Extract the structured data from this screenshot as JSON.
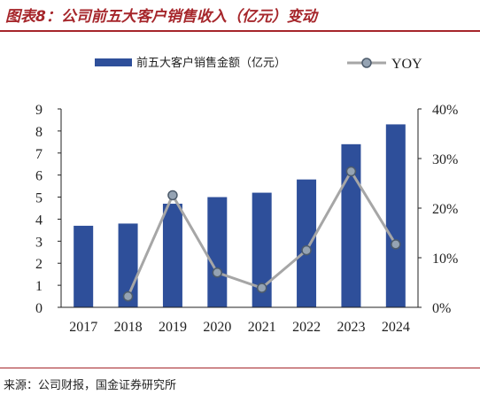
{
  "figure": {
    "title": "图表8：公司前五大客户销售收入（亿元）变动",
    "source": "来源：公司财报，国金证券研究所"
  },
  "colors": {
    "bar": "#2e4f9a",
    "line": "#a6a6a6",
    "marker_fill": "#95a3b3",
    "marker_stroke": "#4d5b6b",
    "accent": "#a6262b",
    "axis": "#222222"
  },
  "chart_data": {
    "type": "bar",
    "categories": [
      "2017",
      "2018",
      "2019",
      "2020",
      "2021",
      "2022",
      "2023",
      "2024"
    ],
    "series": [
      {
        "name": "前五大客户销售金额（亿元）",
        "type": "bar",
        "axis": "left",
        "values": [
          3.7,
          3.8,
          4.7,
          5.0,
          5.2,
          5.8,
          7.4,
          8.3
        ]
      },
      {
        "name": "YOY",
        "type": "line",
        "axis": "right",
        "values": [
          null,
          2.2,
          22.6,
          7.0,
          3.9,
          11.5,
          27.4,
          12.7
        ]
      }
    ],
    "ylim": [
      0,
      9
    ],
    "yticks": [
      "0",
      "1",
      "2",
      "3",
      "4",
      "5",
      "6",
      "7",
      "8",
      "9"
    ],
    "y2lim": [
      0,
      40
    ],
    "y2ticks": [
      "0%",
      "10%",
      "20%",
      "30%",
      "40%"
    ],
    "legend_position": "top",
    "grid": false
  }
}
